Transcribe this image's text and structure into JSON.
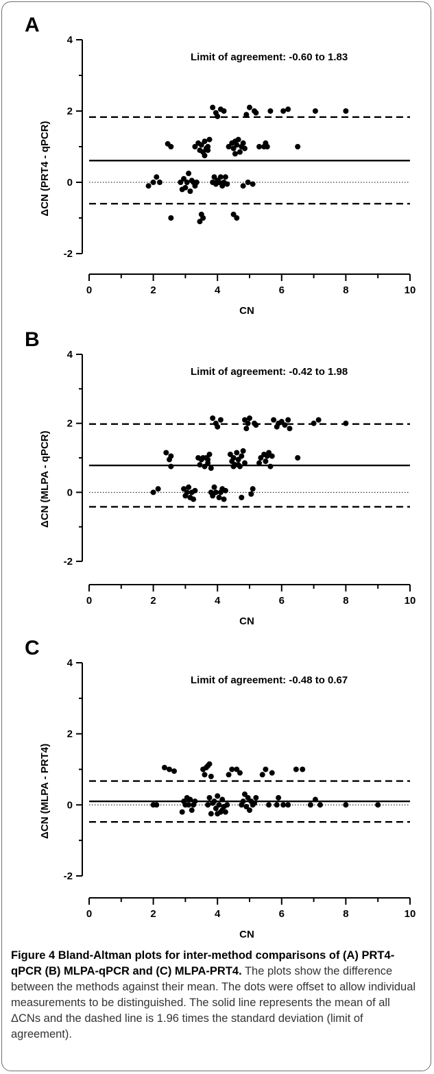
{
  "chart_data": [
    {
      "type": "scatter",
      "panel_label": "A",
      "title": "",
      "xlabel": "CN",
      "ylabel": "ΔCN (PRT4 - qPCR)",
      "xlim": [
        0,
        10
      ],
      "ylim": [
        -2,
        4
      ],
      "x_ticks": [
        0,
        2,
        4,
        6,
        8,
        10
      ],
      "y_ticks": [
        -2,
        0,
        2,
        4
      ],
      "annotation": "Limit of agreement: -0.60 to 1.83",
      "mean_line": 0.61,
      "limits": [
        -0.6,
        1.83
      ],
      "zero_line": true,
      "points": [
        [
          1.85,
          -0.1
        ],
        [
          2.0,
          0.0
        ],
        [
          2.1,
          0.15
        ],
        [
          2.2,
          0.0
        ],
        [
          2.45,
          1.08
        ],
        [
          2.55,
          1.0
        ],
        [
          2.55,
          -1.0
        ],
        [
          2.85,
          0.0
        ],
        [
          2.9,
          -0.2
        ],
        [
          2.95,
          0.1
        ],
        [
          3.0,
          -0.15
        ],
        [
          3.05,
          0.0
        ],
        [
          3.1,
          0.25
        ],
        [
          3.15,
          -0.25
        ],
        [
          3.2,
          0.05
        ],
        [
          3.25,
          0.0
        ],
        [
          3.3,
          -0.1
        ],
        [
          3.35,
          0.0
        ],
        [
          3.3,
          1.0
        ],
        [
          3.4,
          1.1
        ],
        [
          3.45,
          0.9
        ],
        [
          3.5,
          1.05
        ],
        [
          3.55,
          0.85
        ],
        [
          3.6,
          1.15
        ],
        [
          3.65,
          0.95
        ],
        [
          3.7,
          1.0
        ],
        [
          3.75,
          1.2
        ],
        [
          3.6,
          0.75
        ],
        [
          3.7,
          0.9
        ],
        [
          3.45,
          -1.1
        ],
        [
          3.55,
          -1.0
        ],
        [
          3.5,
          -0.9
        ],
        [
          3.85,
          0.0
        ],
        [
          3.9,
          0.15
        ],
        [
          3.95,
          -0.05
        ],
        [
          4.0,
          0.05
        ],
        [
          4.05,
          0.0
        ],
        [
          4.1,
          0.15
        ],
        [
          4.15,
          -0.1
        ],
        [
          4.2,
          0.0
        ],
        [
          4.25,
          0.15
        ],
        [
          4.3,
          -0.05
        ],
        [
          3.85,
          2.1
        ],
        [
          3.95,
          1.95
        ],
        [
          4.0,
          1.85
        ],
        [
          4.1,
          2.05
        ],
        [
          4.2,
          2.0
        ],
        [
          4.35,
          1.0
        ],
        [
          4.45,
          1.1
        ],
        [
          4.5,
          0.95
        ],
        [
          4.55,
          0.8
        ],
        [
          4.6,
          1.05
        ],
        [
          4.65,
          1.2
        ],
        [
          4.7,
          0.85
        ],
        [
          4.75,
          1.0
        ],
        [
          4.8,
          1.1
        ],
        [
          4.85,
          0.95
        ],
        [
          4.55,
          1.15
        ],
        [
          4.5,
          -0.9
        ],
        [
          4.6,
          -1.0
        ],
        [
          4.8,
          -0.1
        ],
        [
          4.9,
          1.9
        ],
        [
          4.95,
          0.0
        ],
        [
          5.0,
          2.1
        ],
        [
          5.1,
          -0.05
        ],
        [
          5.15,
          2.0
        ],
        [
          5.2,
          1.95
        ],
        [
          5.3,
          1.0
        ],
        [
          5.45,
          1.0
        ],
        [
          5.5,
          1.1
        ],
        [
          5.55,
          1.0
        ],
        [
          5.65,
          2.0
        ],
        [
          6.05,
          2.0
        ],
        [
          6.2,
          2.05
        ],
        [
          6.5,
          1.0
        ],
        [
          7.05,
          2.0
        ],
        [
          8.0,
          2.0
        ]
      ]
    },
    {
      "type": "scatter",
      "panel_label": "B",
      "title": "",
      "xlabel": "CN",
      "ylabel": "ΔCN (MLPA - qPCR)",
      "xlim": [
        0,
        10
      ],
      "ylim": [
        -2,
        4
      ],
      "x_ticks": [
        0,
        2,
        4,
        6,
        8,
        10
      ],
      "y_ticks": [
        -2,
        0,
        2,
        4
      ],
      "annotation": "Limit of agreement: -0.42 to 1.98",
      "mean_line": 0.78,
      "limits": [
        -0.42,
        1.98
      ],
      "zero_line": true,
      "points": [
        [
          2.0,
          0.0
        ],
        [
          2.15,
          0.1
        ],
        [
          2.4,
          1.15
        ],
        [
          2.5,
          0.95
        ],
        [
          2.55,
          1.05
        ],
        [
          2.55,
          0.75
        ],
        [
          2.95,
          0.1
        ],
        [
          3.0,
          -0.1
        ],
        [
          3.05,
          0.0
        ],
        [
          3.1,
          0.15
        ],
        [
          3.15,
          -0.15
        ],
        [
          3.2,
          0.0
        ],
        [
          3.25,
          -0.2
        ],
        [
          3.3,
          0.05
        ],
        [
          3.4,
          1.0
        ],
        [
          3.45,
          0.8
        ],
        [
          3.5,
          0.95
        ],
        [
          3.55,
          1.0
        ],
        [
          3.6,
          0.75
        ],
        [
          3.65,
          1.0
        ],
        [
          3.7,
          0.85
        ],
        [
          3.75,
          1.1
        ],
        [
          3.8,
          0.7
        ],
        [
          3.7,
          0.95
        ],
        [
          3.8,
          0.0
        ],
        [
          3.85,
          -0.1
        ],
        [
          3.9,
          0.15
        ],
        [
          3.95,
          0.0
        ],
        [
          4.05,
          -0.15
        ],
        [
          4.1,
          0.0
        ],
        [
          4.15,
          0.1
        ],
        [
          4.2,
          -0.2
        ],
        [
          4.25,
          0.05
        ],
        [
          3.85,
          2.15
        ],
        [
          3.95,
          2.0
        ],
        [
          4.0,
          1.9
        ],
        [
          4.1,
          2.1
        ],
        [
          4.4,
          1.1
        ],
        [
          4.45,
          0.9
        ],
        [
          4.5,
          1.0
        ],
        [
          4.55,
          0.8
        ],
        [
          4.6,
          1.15
        ],
        [
          4.65,
          0.95
        ],
        [
          4.7,
          0.75
        ],
        [
          4.75,
          1.05
        ],
        [
          4.8,
          1.2
        ],
        [
          4.85,
          0.85
        ],
        [
          4.5,
          0.75
        ],
        [
          4.65,
          0.8
        ],
        [
          4.75,
          -0.15
        ],
        [
          4.85,
          2.1
        ],
        [
          4.9,
          1.85
        ],
        [
          4.95,
          2.0
        ],
        [
          5.0,
          2.15
        ],
        [
          5.05,
          -0.05
        ],
        [
          5.1,
          0.1
        ],
        [
          5.15,
          2.0
        ],
        [
          5.2,
          1.95
        ],
        [
          5.3,
          0.85
        ],
        [
          5.35,
          1.0
        ],
        [
          5.45,
          1.1
        ],
        [
          5.5,
          0.9
        ],
        [
          5.55,
          1.05
        ],
        [
          5.6,
          1.15
        ],
        [
          5.65,
          0.75
        ],
        [
          5.7,
          1.05
        ],
        [
          5.75,
          2.1
        ],
        [
          5.85,
          1.9
        ],
        [
          5.9,
          2.0
        ],
        [
          6.0,
          2.05
        ],
        [
          6.1,
          1.95
        ],
        [
          6.2,
          2.1
        ],
        [
          6.25,
          1.85
        ],
        [
          6.5,
          1.0
        ],
        [
          7.0,
          2.0
        ],
        [
          7.15,
          2.1
        ],
        [
          8.0,
          2.0
        ]
      ]
    },
    {
      "type": "scatter",
      "panel_label": "C",
      "title": "",
      "xlabel": "CN",
      "ylabel": "ΔCN (MLPA - PRT4)",
      "xlim": [
        0,
        10
      ],
      "ylim": [
        -2,
        4
      ],
      "x_ticks": [
        0,
        2,
        4,
        6,
        8,
        10
      ],
      "y_ticks": [
        -2,
        0,
        2,
        4
      ],
      "annotation": "Limit of agreement: -0.48 to 0.67",
      "mean_line": 0.1,
      "limits": [
        -0.48,
        0.67
      ],
      "zero_line": true,
      "points": [
        [
          2.0,
          0.0
        ],
        [
          2.1,
          0.0
        ],
        [
          2.35,
          1.05
        ],
        [
          2.5,
          1.0
        ],
        [
          2.65,
          0.95
        ],
        [
          2.9,
          -0.2
        ],
        [
          2.95,
          0.1
        ],
        [
          3.0,
          0.0
        ],
        [
          3.05,
          0.2
        ],
        [
          3.1,
          0.0
        ],
        [
          3.15,
          0.15
        ],
        [
          3.2,
          -0.15
        ],
        [
          3.25,
          0.0
        ],
        [
          3.3,
          0.1
        ],
        [
          3.55,
          1.0
        ],
        [
          3.6,
          0.85
        ],
        [
          3.65,
          1.05
        ],
        [
          3.75,
          1.15
        ],
        [
          3.8,
          0.8
        ],
        [
          3.7,
          1.1
        ],
        [
          3.7,
          0.0
        ],
        [
          3.75,
          0.2
        ],
        [
          3.8,
          -0.25
        ],
        [
          3.85,
          0.05
        ],
        [
          3.9,
          0.1
        ],
        [
          3.95,
          -0.1
        ],
        [
          4.0,
          0.25
        ],
        [
          4.05,
          0.0
        ],
        [
          4.1,
          -0.2
        ],
        [
          4.15,
          0.15
        ],
        [
          4.2,
          -0.05
        ],
        [
          4.25,
          -0.2
        ],
        [
          4.3,
          0.0
        ],
        [
          4.0,
          -0.25
        ],
        [
          4.15,
          -0.15
        ],
        [
          4.35,
          0.85
        ],
        [
          4.45,
          1.0
        ],
        [
          4.6,
          1.0
        ],
        [
          4.7,
          0.9
        ],
        [
          4.75,
          0.0
        ],
        [
          4.8,
          0.1
        ],
        [
          4.85,
          0.3
        ],
        [
          4.9,
          -0.05
        ],
        [
          4.95,
          0.2
        ],
        [
          5.0,
          -0.15
        ],
        [
          5.05,
          0.1
        ],
        [
          5.1,
          0.0
        ],
        [
          5.15,
          0.05
        ],
        [
          5.2,
          0.2
        ],
        [
          5.4,
          0.85
        ],
        [
          5.5,
          1.0
        ],
        [
          5.7,
          0.9
        ],
        [
          5.6,
          0.0
        ],
        [
          5.85,
          0.0
        ],
        [
          5.9,
          0.2
        ],
        [
          6.05,
          0.0
        ],
        [
          6.2,
          0.0
        ],
        [
          6.45,
          1.0
        ],
        [
          6.65,
          1.0
        ],
        [
          6.9,
          0.0
        ],
        [
          7.05,
          0.15
        ],
        [
          7.2,
          0.0
        ],
        [
          8.0,
          0.0
        ],
        [
          9.0,
          0.0
        ]
      ]
    }
  ],
  "caption": {
    "title": "Figure 4 Bland-Altman plots for inter-method comparisons of (A) PRT4-qPCR (B) MLPA-qPCR and (C) MLPA-PRT4.",
    "body": " The plots show the difference between the methods against their mean. The dots were offset to allow individual measurements to be distinguished. The solid line represents the mean of all ΔCNs and the dashed line is 1.96 times the standard deviation (limit of agreement)."
  }
}
